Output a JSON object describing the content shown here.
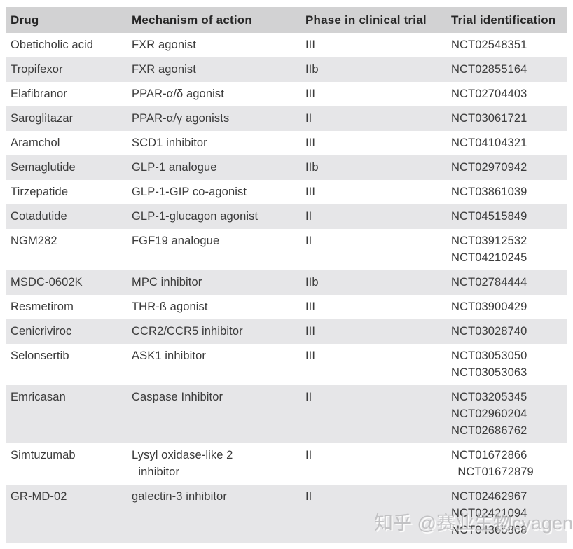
{
  "table": {
    "columns": [
      "Drug",
      "Mechanism of action",
      "Phase in clinical trial",
      "Trial identification"
    ],
    "rows": [
      {
        "drug": "Obeticholic acid",
        "mechanism": "FXR agonist",
        "phase": "III",
        "trials": [
          "NCT02548351"
        ]
      },
      {
        "drug": "Tropifexor",
        "mechanism": "FXR agonist",
        "phase": "IIb",
        "trials": [
          "NCT02855164"
        ]
      },
      {
        "drug": "Elafibranor",
        "mechanism": "PPAR-α/δ agonist",
        "phase": "III",
        "trials": [
          "NCT02704403"
        ]
      },
      {
        "drug": "Saroglitazar",
        "mechanism": "PPAR-α/γ agonists",
        "phase": "II",
        "trials": [
          "NCT03061721"
        ]
      },
      {
        "drug": "Aramchol",
        "mechanism": "SCD1 inhibitor",
        "phase": "III",
        "trials": [
          "NCT04104321"
        ]
      },
      {
        "drug": "Semaglutide",
        "mechanism": "GLP-1 analogue",
        "phase": "IIb",
        "trials": [
          "NCT02970942"
        ]
      },
      {
        "drug": "Tirzepatide",
        "mechanism": "GLP-1-GIP co-agonist",
        "phase": "III",
        "trials": [
          "NCT03861039"
        ]
      },
      {
        "drug": "Cotadutide",
        "mechanism": "GLP-1-glucagon agonist",
        "phase": "II",
        "trials": [
          "NCT04515849"
        ]
      },
      {
        "drug": "NGM282",
        "mechanism": "FGF19 analogue",
        "phase": "II",
        "trials": [
          "NCT03912532",
          "NCT04210245"
        ]
      },
      {
        "drug": "MSDC-0602K",
        "mechanism": "MPC inhibitor",
        "phase": "IIb",
        "trials": [
          "NCT02784444"
        ]
      },
      {
        "drug": "Resmetirom",
        "mechanism": "THR-ß agonist",
        "phase": "III",
        "trials": [
          "NCT03900429"
        ]
      },
      {
        "drug": "Cenicriviroc",
        "mechanism": "CCR2/CCR5 inhibitor",
        "phase": "III",
        "trials": [
          "NCT03028740"
        ]
      },
      {
        "drug": "Selonsertib",
        "mechanism": "ASK1 inhibitor",
        "phase": "III",
        "trials": [
          "NCT03053050",
          "NCT03053063"
        ]
      },
      {
        "drug": "Emricasan",
        "mechanism": "Caspase Inhibitor",
        "phase": "II",
        "trials": [
          "NCT03205345",
          "NCT02960204",
          "NCT02686762"
        ]
      },
      {
        "drug": "Simtuzumab",
        "mechanism": "Lysyl oxidase-like 2\n  inhibitor",
        "phase": "II",
        "trials": [
          "NCT01672866",
          "  NCT01672879"
        ]
      },
      {
        "drug": "GR-MD-02",
        "mechanism": "galectin-3 inhibitor",
        "phase": "II",
        "trials": [
          "NCT02462967",
          "NCT02421094",
          "NCT04365868"
        ]
      }
    ]
  },
  "watermark": {
    "text": "知乎 @赛业生物cyagen"
  },
  "colors": {
    "header_bg": "#d2d2d3",
    "alt_row_bg": "#e6e6e8",
    "header_text": "#262626",
    "body_text": "#3b3b3b",
    "watermark_text": "#bcbcbe",
    "page_bg": "#ffffff"
  }
}
